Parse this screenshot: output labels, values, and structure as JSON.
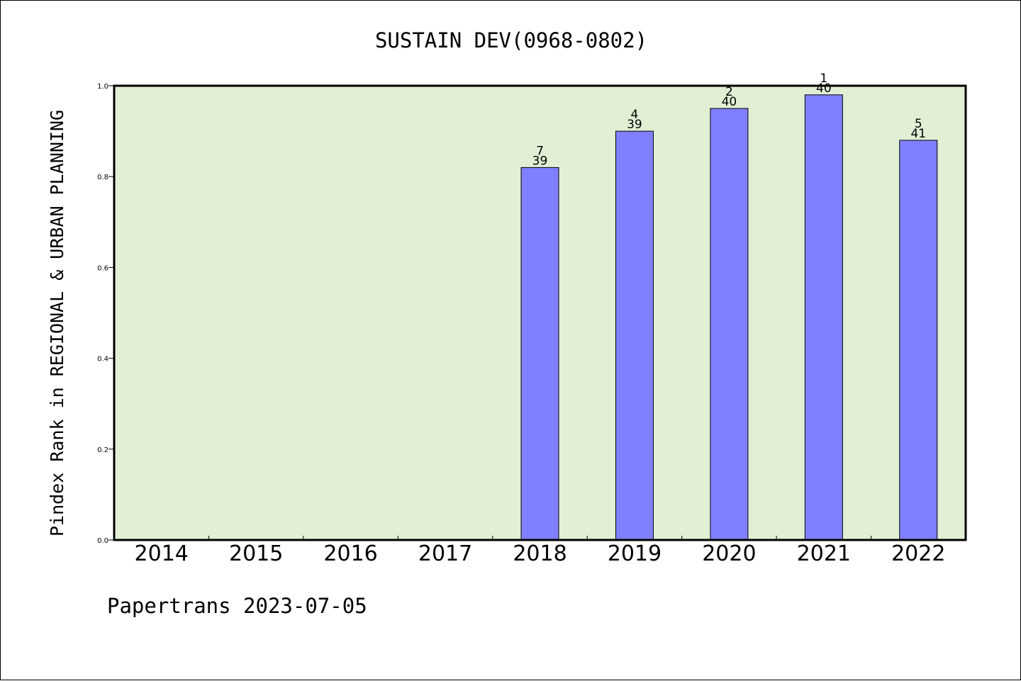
{
  "chart_data": {
    "type": "bar",
    "title": "SUSTAIN DEV(0968-0802)",
    "xlabel": "",
    "ylabel": "Pindex Rank in REGIONAL & URBAN PLANNING",
    "ylim": [
      0,
      1.0
    ],
    "yticks": [
      "0.0",
      "0.2",
      "0.4",
      "0.6",
      "0.8",
      "1.0"
    ],
    "categories": [
      "2014",
      "2015",
      "2016",
      "2017",
      "2018",
      "2019",
      "2020",
      "2021",
      "2022"
    ],
    "values": [
      null,
      null,
      null,
      null,
      0.82,
      0.9,
      0.95,
      0.98,
      0.88
    ],
    "rank_labels": [
      "",
      "",
      "",
      "",
      "7",
      "4",
      "2",
      "1",
      "5"
    ],
    "total_labels": [
      "",
      "",
      "",
      "",
      "39",
      "39",
      "40",
      "40",
      "41"
    ],
    "grid": false,
    "colors": {
      "bar": "#8080ff",
      "plot_background": "#e1f0d5",
      "edge": "#000000"
    }
  },
  "footer": "Papertrans 2023-07-05"
}
